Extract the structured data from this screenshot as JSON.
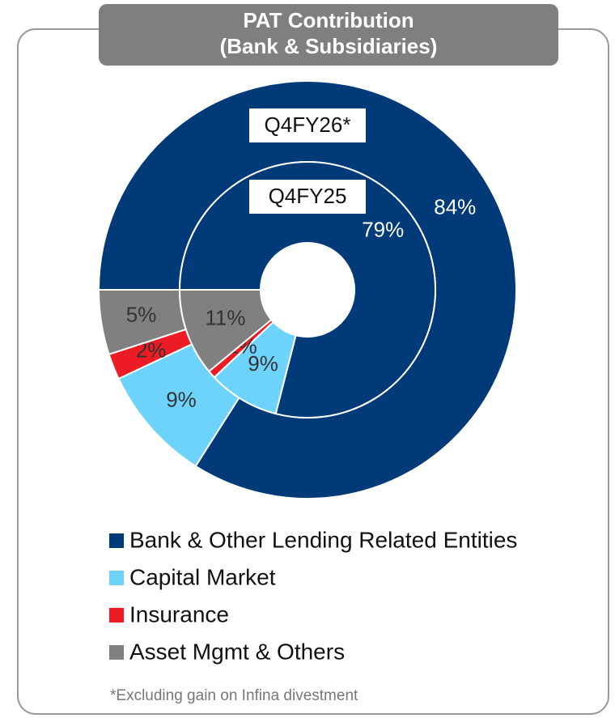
{
  "chart_data": {
    "type": "donut",
    "title": "PAT Contribution",
    "subtitle": "(Bank & Subsidiaries)",
    "categories": [
      "Bank & Other Lending Related Entities",
      "Capital Market",
      "Insurance",
      "Asset Mgmt & Others"
    ],
    "colors": [
      "#003a78",
      "#6dd3fb",
      "#ed1c24",
      "#808080"
    ],
    "series": [
      {
        "name": "Q4FY26*",
        "values": [
          84,
          9,
          2,
          5
        ],
        "value_labels": [
          "84%",
          "9%",
          "2%",
          "5%"
        ]
      },
      {
        "name": "Q4FY25",
        "values": [
          79,
          9,
          1,
          11
        ],
        "value_labels": [
          "79%",
          "9%",
          "1%",
          "11%"
        ]
      }
    ],
    "footnote": "*Excluding gain on Infina divestment"
  }
}
